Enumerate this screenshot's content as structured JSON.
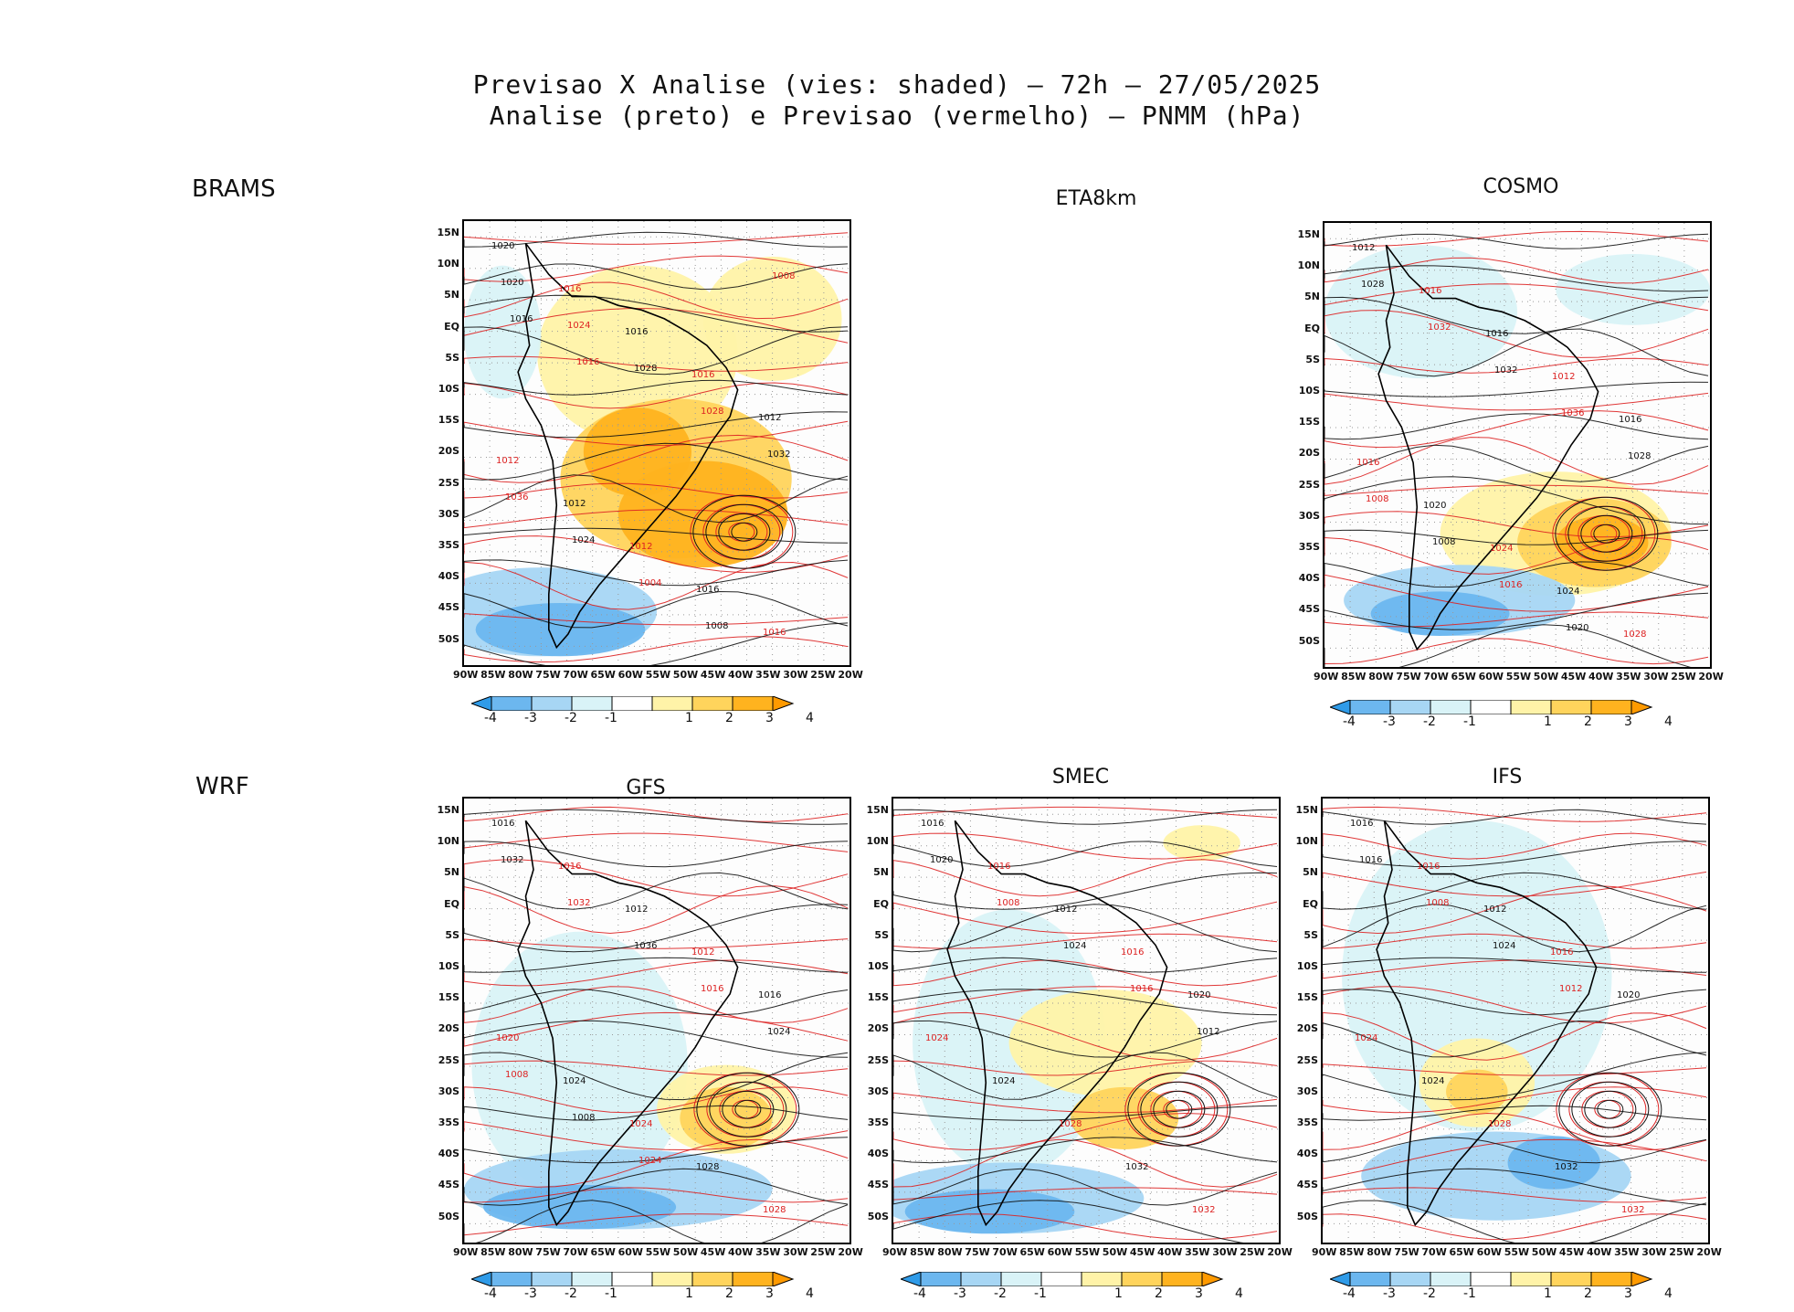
{
  "title": {
    "line1": "Previsao X Analise (vies: shaded) – 72h – 27/05/2025",
    "line2": "Analise (preto) e Previsao (vermelho) – PNMM (hPa)"
  },
  "rows": {
    "row1": "BRAMS",
    "row2": "WRF"
  },
  "panels": {
    "brams": {
      "name": ""
    },
    "eta": {
      "name": "ETA8km"
    },
    "cosmo": {
      "name": "COSMO"
    },
    "gfs": {
      "name": "GFS"
    },
    "smec": {
      "name": "SMEC"
    },
    "ifs": {
      "name": "IFS"
    }
  },
  "axes": {
    "lat": [
      "15N",
      "10N",
      "5N",
      "EQ",
      "5S",
      "10S",
      "15S",
      "20S",
      "25S",
      "30S",
      "35S",
      "40S",
      "45S",
      "50S"
    ],
    "lon": [
      "90W",
      "85W",
      "80W",
      "75W",
      "70W",
      "65W",
      "60W",
      "55W",
      "50W",
      "45W",
      "40W",
      "35W",
      "30W",
      "25W",
      "20W"
    ]
  },
  "colorbar": {
    "labels": [
      "-4",
      "-3",
      "-2",
      "-1",
      "1",
      "2",
      "3",
      "4"
    ],
    "colors": [
      "#2f9be8",
      "#6cb7ef",
      "#a7d6f4",
      "#d9f3f7",
      "#ffffff",
      "#fff3a8",
      "#ffd45c",
      "#ffb31f",
      "#ff9a00"
    ]
  },
  "isobar_labels": {
    "brams": [
      "1020",
      "1016",
      "1016",
      "1016",
      "1012",
      "1012",
      "1012",
      "1012",
      "1016",
      "1016",
      "1020",
      "1024",
      "1028",
      "1028",
      "1032",
      "1036",
      "1024",
      "1004",
      "1008",
      "1008",
      "1016",
      "1016"
    ],
    "cosmo": [
      "1012",
      "1016",
      "1016",
      "1012",
      "1016",
      "1016",
      "1020",
      "1024",
      "1024",
      "1028",
      "1028",
      "1032",
      "1032",
      "1036",
      "1028",
      "1008",
      "1008",
      "1016",
      "1020"
    ],
    "gfs": [
      "1016",
      "1016",
      "1012",
      "1012",
      "1016",
      "1020",
      "1024",
      "1024",
      "1028",
      "1028",
      "1032",
      "1032",
      "1036",
      "1016",
      "1024",
      "1008",
      "1008",
      "1024"
    ],
    "smec": [
      "1016",
      "1016",
      "1012",
      "1016",
      "1020",
      "1024",
      "1024",
      "1028",
      "1032",
      "1032",
      "1020",
      "1008",
      "1024",
      "1016",
      "1012"
    ],
    "ifs": [
      "1016",
      "1016",
      "1012",
      "1016",
      "1020",
      "1024",
      "1024",
      "1028",
      "1032",
      "1032",
      "1016",
      "1008",
      "1024",
      "1012"
    ]
  }
}
